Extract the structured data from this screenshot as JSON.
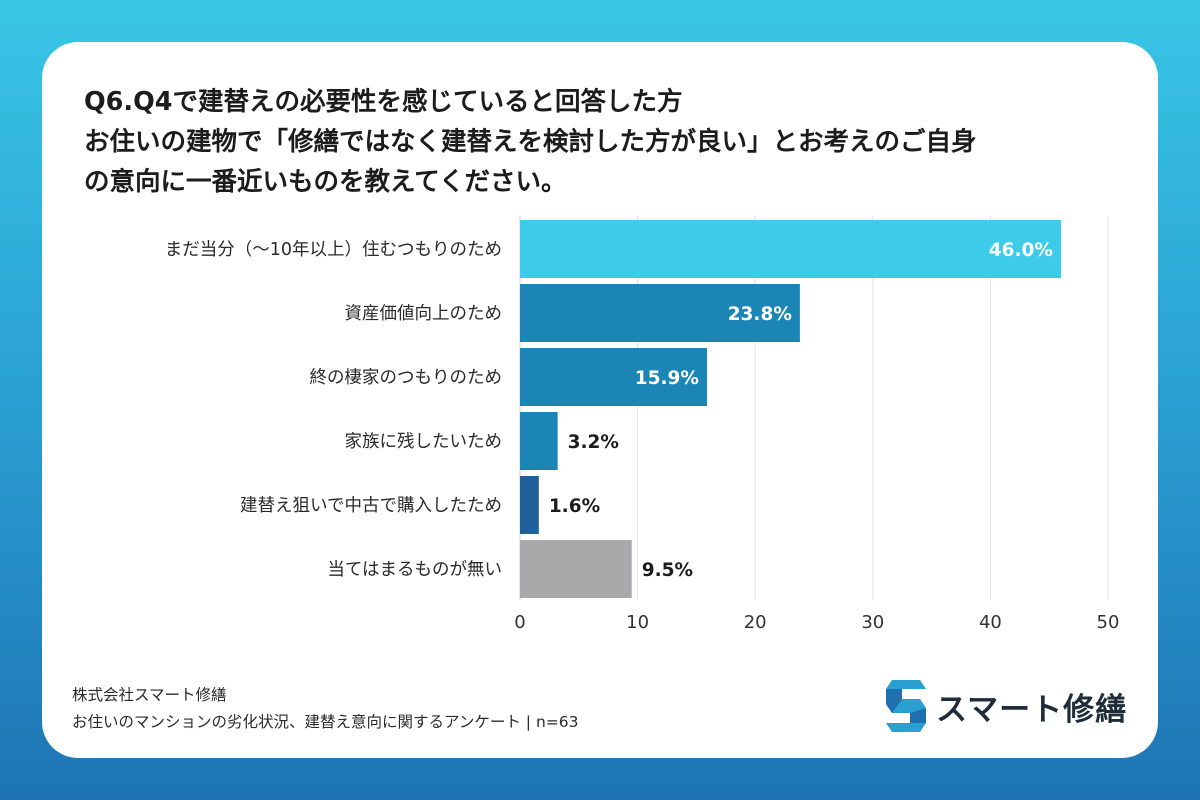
{
  "title_lines": [
    "Q6.Q4で建替えの必要性を感じていると回答した方",
    "お住いの建物で「修繕ではなく建替えを検討した方が良い」とお考えのご自身",
    "の意向に一番近いものを教えてください。"
  ],
  "chart_data": {
    "type": "bar",
    "orientation": "horizontal",
    "categories": [
      "まだ当分（〜10年以上）住むつもりのため",
      "資産価値向上のため",
      "終の棲家のつもりのため",
      "家族に残したいため",
      "建替え狙いで中古で購入したため",
      "当てはまるものが無い"
    ],
    "values": [
      46.0,
      23.8,
      15.9,
      3.2,
      1.6,
      9.5
    ],
    "value_labels": [
      "46.0%",
      "23.8%",
      "15.9%",
      "3.2%",
      "1.6%",
      "9.5%"
    ],
    "colors": [
      "#3ccbe8",
      "#1b86b6",
      "#1b86b6",
      "#1b86b6",
      "#1f5f9a",
      "#a9a8ab"
    ],
    "xlim": [
      0,
      50
    ],
    "xticks": [
      0,
      10,
      20,
      30,
      40,
      50
    ],
    "grid": true
  },
  "footer": {
    "company": "株式会社スマート修繕",
    "source": "お住いのマンションの劣化状況、建替え意向に関するアンケート | n=63"
  },
  "logo": {
    "text": "スマート修繕",
    "icon": "s-logo-icon"
  }
}
